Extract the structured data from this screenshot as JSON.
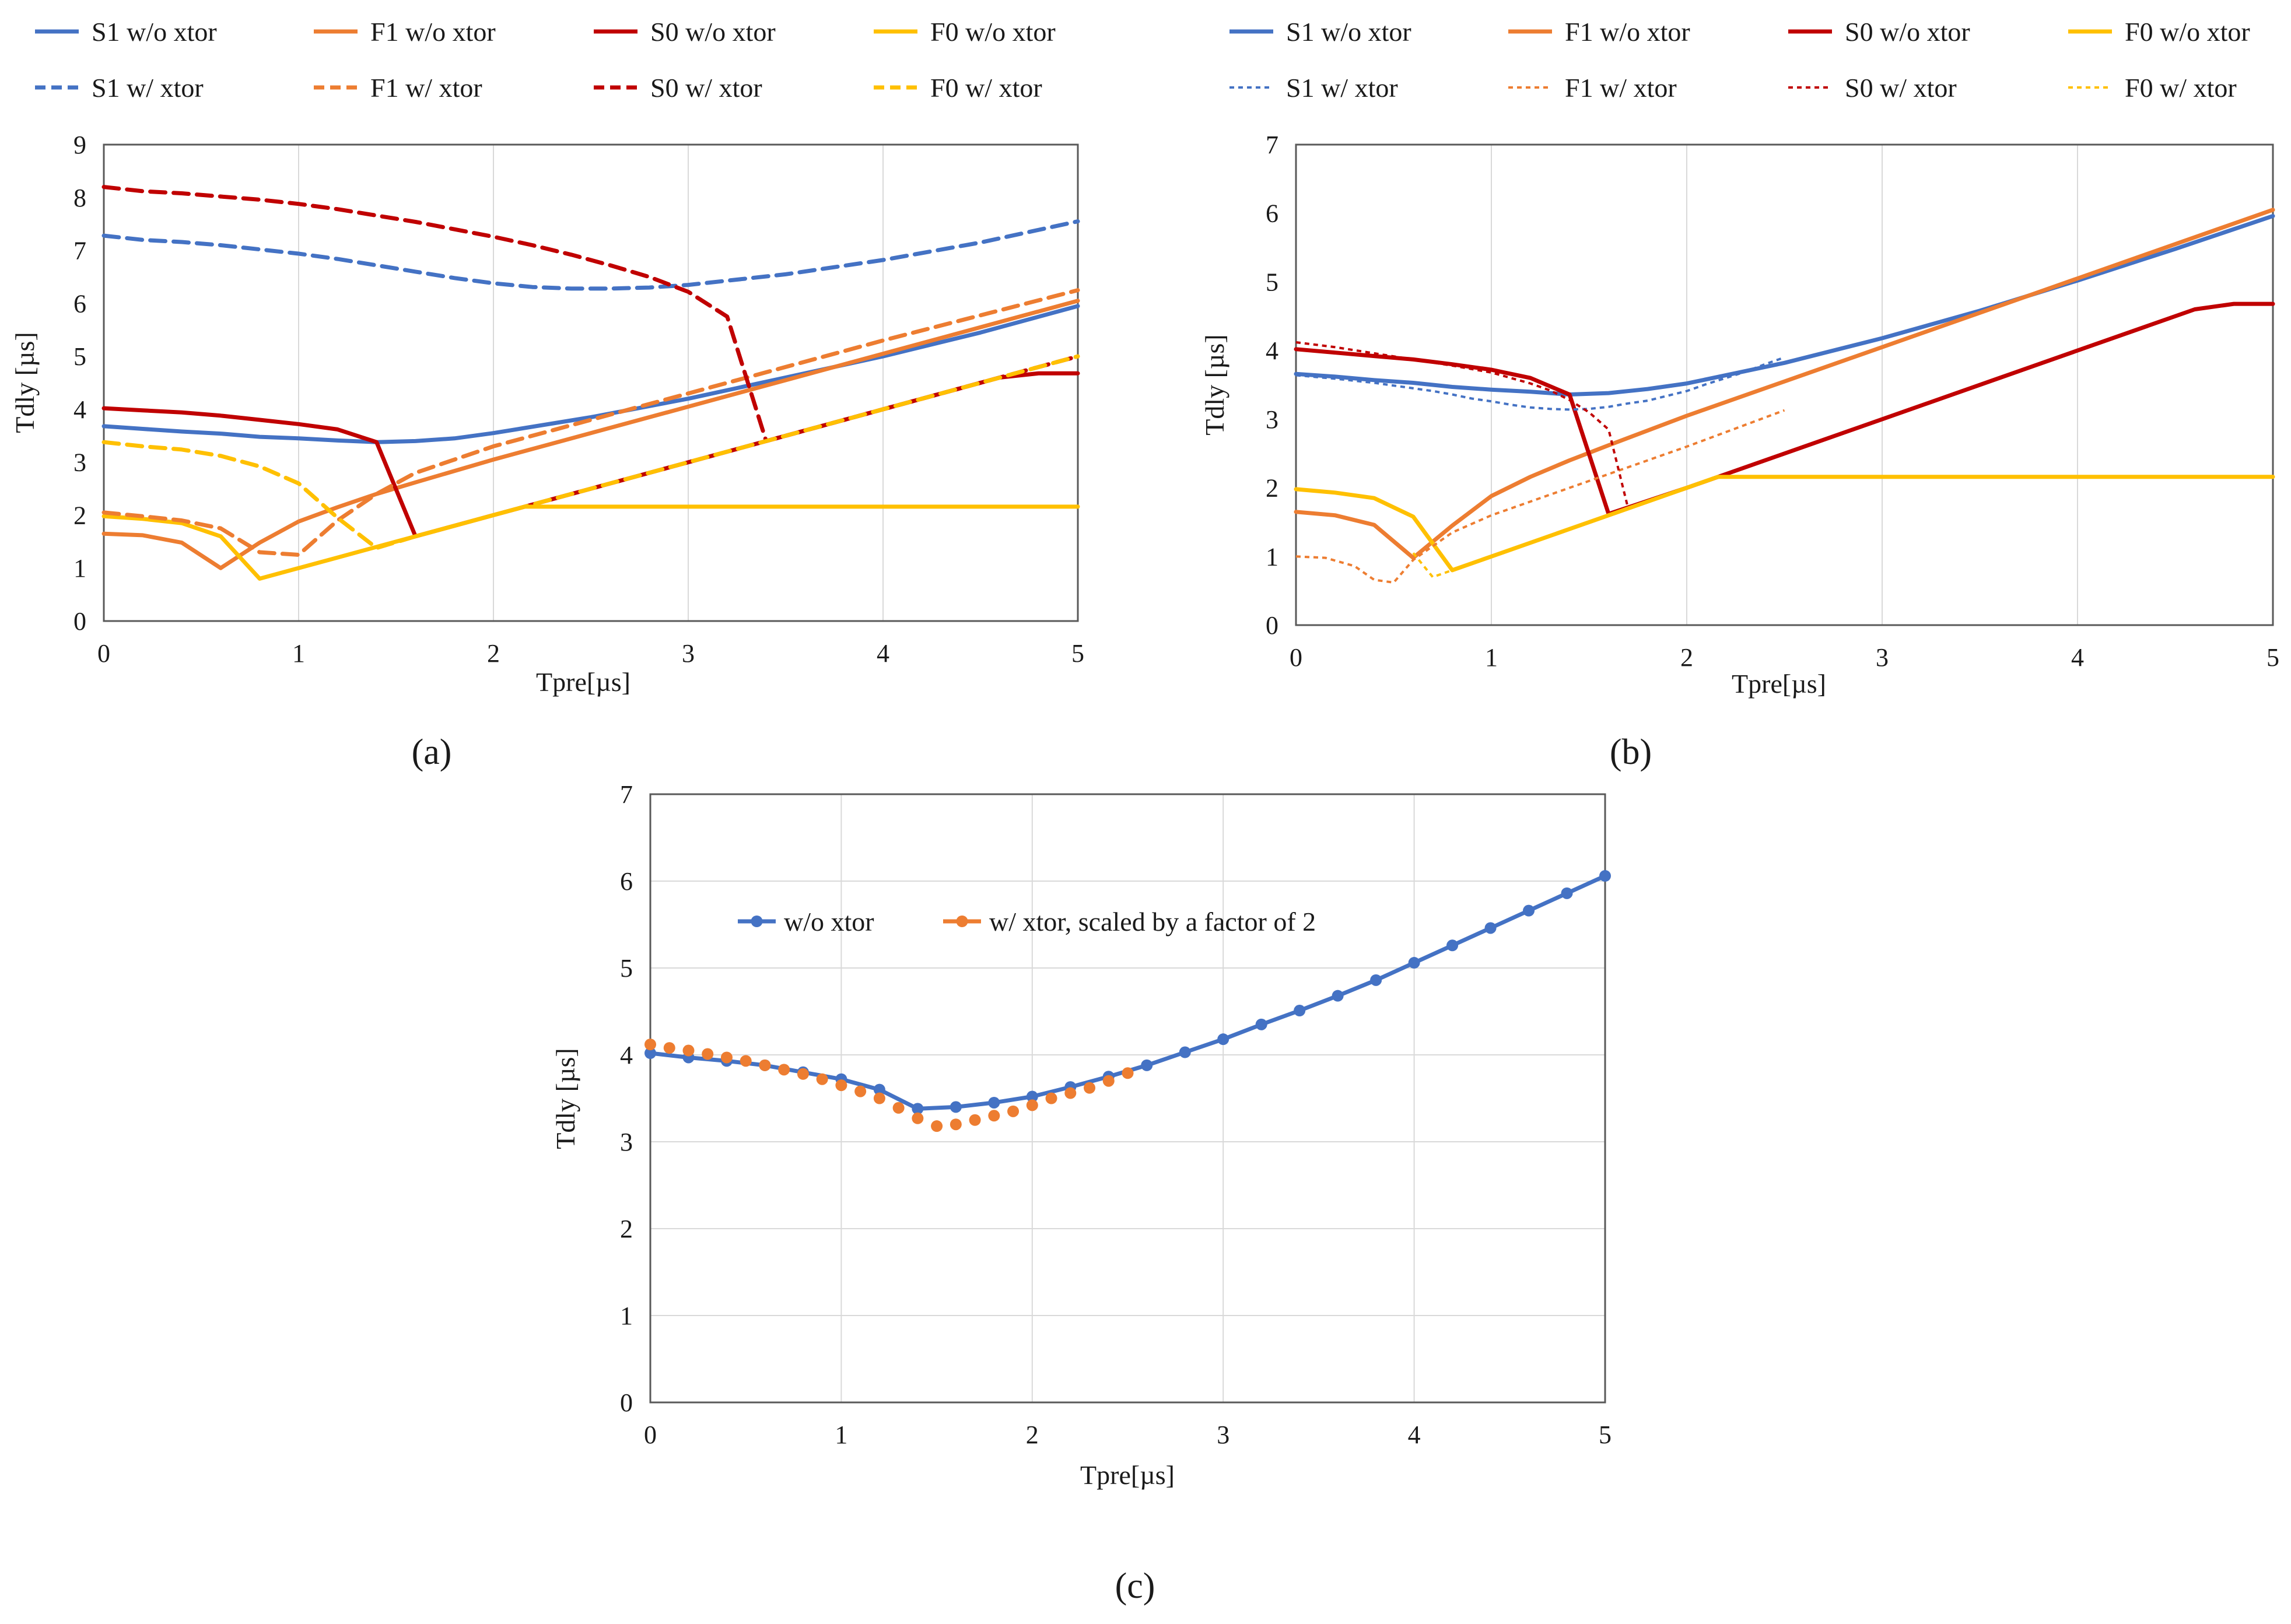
{
  "colors": {
    "S1": "#4472C4",
    "F1": "#ED7D31",
    "S0": "#C00000",
    "F0": "#FFC000",
    "grid": "#d9d9d9",
    "frame": "#595959"
  },
  "chart_data": [
    {
      "panel": "(a)",
      "type": "line",
      "xlabel": "Tpre[µs]",
      "ylabel": "Tdly [µs]",
      "xlim": [
        0,
        5
      ],
      "ylim": [
        0,
        9
      ],
      "xticks": [
        "0",
        "1",
        "2",
        "3",
        "4",
        "5"
      ],
      "yticks": [
        "0",
        "1",
        "2",
        "3",
        "4",
        "5",
        "6",
        "7",
        "8",
        "9"
      ],
      "grid": "vertical",
      "legend": "top",
      "series": [
        {
          "name": "S1 w/o xtor",
          "color": "#4472C4",
          "style": "solid",
          "x": [
            0,
            0.2,
            0.4,
            0.6,
            0.8,
            1.0,
            1.2,
            1.4,
            1.6,
            1.8,
            2.0,
            2.5,
            3.0,
            3.5,
            4.0,
            4.5,
            5.0
          ],
          "y": [
            3.68,
            3.63,
            3.58,
            3.54,
            3.48,
            3.45,
            3.41,
            3.38,
            3.4,
            3.45,
            3.55,
            3.85,
            4.2,
            4.6,
            5.0,
            5.45,
            5.95
          ]
        },
        {
          "name": "F1 w/o xtor",
          "color": "#ED7D31",
          "style": "solid",
          "x": [
            0,
            0.2,
            0.4,
            0.6,
            0.8,
            1.0,
            1.2,
            1.4,
            1.6,
            2.0,
            3.0,
            4.0,
            5.0
          ],
          "y": [
            1.65,
            1.62,
            1.48,
            1.0,
            1.48,
            1.88,
            2.15,
            2.4,
            2.62,
            3.05,
            4.05,
            5.05,
            6.05
          ]
        },
        {
          "name": "S0 w/o xtor",
          "color": "#C00000",
          "style": "solid",
          "x": [
            0,
            0.2,
            0.4,
            0.6,
            0.8,
            1.0,
            1.2,
            1.4,
            1.6,
            2.0,
            3.0,
            4.0,
            4.6,
            4.8,
            5.0
          ],
          "y": [
            4.02,
            3.98,
            3.94,
            3.88,
            3.8,
            3.72,
            3.62,
            3.38,
            1.6,
            2.0,
            3.0,
            4.0,
            4.6,
            4.68,
            4.68
          ]
        },
        {
          "name": "F0 w/o xtor",
          "color": "#FFC000",
          "style": "solid",
          "x": [
            0,
            0.2,
            0.4,
            0.6,
            0.8,
            1.0,
            1.2,
            1.4,
            1.6,
            1.8,
            2.0,
            2.16,
            3.0,
            4.0,
            5.0
          ],
          "y": [
            1.98,
            1.93,
            1.85,
            1.6,
            0.8,
            1.0,
            1.2,
            1.4,
            1.6,
            1.8,
            2.0,
            2.16,
            2.16,
            2.16,
            2.16
          ]
        },
        {
          "name": "S1 w/ xtor",
          "color": "#4472C4",
          "style": "dashed",
          "x": [
            0,
            0.2,
            0.4,
            0.6,
            0.8,
            1.0,
            1.2,
            1.4,
            1.6,
            1.8,
            2.0,
            2.2,
            2.4,
            2.6,
            2.8,
            3.0,
            3.5,
            4.0,
            4.5,
            5.0
          ],
          "y": [
            7.28,
            7.2,
            7.16,
            7.1,
            7.02,
            6.94,
            6.84,
            6.72,
            6.6,
            6.48,
            6.38,
            6.31,
            6.28,
            6.28,
            6.3,
            6.35,
            6.55,
            6.82,
            7.15,
            7.55
          ]
        },
        {
          "name": "F1 w/ xtor",
          "color": "#ED7D31",
          "style": "dashed",
          "x": [
            0,
            0.2,
            0.4,
            0.6,
            0.8,
            1.0,
            1.2,
            1.4,
            1.6,
            2.0,
            3.0,
            4.0,
            5.0
          ],
          "y": [
            2.05,
            1.98,
            1.9,
            1.75,
            1.3,
            1.25,
            1.9,
            2.4,
            2.8,
            3.3,
            4.3,
            5.3,
            6.25
          ]
        },
        {
          "name": "S0 w/ xtor",
          "color": "#C00000",
          "style": "dashed",
          "x": [
            0,
            0.2,
            0.4,
            0.6,
            0.8,
            1.0,
            1.2,
            1.4,
            1.6,
            1.8,
            2.0,
            2.2,
            2.4,
            2.6,
            2.8,
            3.0,
            3.2,
            3.4,
            4.0,
            4.6,
            5.0
          ],
          "y": [
            8.2,
            8.12,
            8.08,
            8.02,
            7.96,
            7.88,
            7.78,
            7.66,
            7.54,
            7.4,
            7.26,
            7.1,
            6.92,
            6.72,
            6.5,
            6.22,
            5.75,
            3.4,
            4.0,
            4.6,
            5.0
          ]
        },
        {
          "name": "F0 w/ xtor",
          "color": "#FFC000",
          "style": "dashed",
          "x": [
            0,
            0.2,
            0.4,
            0.6,
            0.8,
            1.0,
            1.2,
            1.4,
            1.6,
            2.0,
            3.0,
            4.0,
            5.0
          ],
          "y": [
            3.38,
            3.3,
            3.24,
            3.12,
            2.92,
            2.6,
            1.95,
            1.38,
            1.6,
            2.0,
            3.0,
            4.0,
            5.0
          ]
        }
      ]
    },
    {
      "panel": "(b)",
      "type": "line",
      "xlabel": "Tpre[µs]",
      "ylabel": "Tdly [µs]",
      "xlim": [
        0,
        5
      ],
      "ylim": [
        0,
        7
      ],
      "xticks": [
        "0",
        "1",
        "2",
        "3",
        "4",
        "5"
      ],
      "yticks": [
        "0",
        "1",
        "2",
        "3",
        "4",
        "5",
        "6",
        "7"
      ],
      "grid": "vertical",
      "legend": "top",
      "series": [
        {
          "name": "S1 w/o xtor",
          "color": "#4472C4",
          "style": "solid",
          "x": [
            0,
            0.2,
            0.4,
            0.6,
            0.8,
            1.0,
            1.2,
            1.4,
            1.6,
            1.8,
            2.0,
            2.5,
            3.0,
            3.5,
            4.0,
            4.5,
            5.0
          ],
          "y": [
            3.66,
            3.62,
            3.57,
            3.53,
            3.47,
            3.43,
            3.4,
            3.36,
            3.38,
            3.44,
            3.52,
            3.82,
            4.18,
            4.58,
            5.02,
            5.48,
            5.96
          ]
        },
        {
          "name": "F1 w/o xtor",
          "color": "#ED7D31",
          "style": "solid",
          "x": [
            0,
            0.2,
            0.4,
            0.6,
            0.8,
            1.0,
            1.2,
            1.4,
            1.6,
            2.0,
            3.0,
            4.0,
            5.0
          ],
          "y": [
            1.65,
            1.6,
            1.46,
            0.98,
            1.45,
            1.88,
            2.16,
            2.4,
            2.62,
            3.05,
            4.05,
            5.05,
            6.05
          ]
        },
        {
          "name": "S0 w/o xtor",
          "color": "#C00000",
          "style": "solid",
          "x": [
            0,
            0.2,
            0.4,
            0.6,
            0.8,
            1.0,
            1.2,
            1.4,
            1.6,
            2.0,
            3.0,
            4.0,
            4.6,
            4.8,
            5.0
          ],
          "y": [
            4.02,
            3.97,
            3.92,
            3.87,
            3.8,
            3.72,
            3.6,
            3.36,
            1.62,
            2.0,
            3.0,
            4.0,
            4.6,
            4.68,
            4.68
          ]
        },
        {
          "name": "F0 w/o xtor",
          "color": "#FFC000",
          "style": "solid",
          "x": [
            0,
            0.2,
            0.4,
            0.6,
            0.8,
            1.0,
            1.4,
            1.6,
            2.0,
            2.16,
            3.0,
            4.0,
            5.0
          ],
          "y": [
            1.98,
            1.93,
            1.85,
            1.58,
            0.8,
            1.0,
            1.4,
            1.6,
            2.0,
            2.16,
            2.16,
            2.16,
            2.16
          ]
        },
        {
          "name": "S1 w/ xtor",
          "color": "#4472C4",
          "style": "dotted",
          "x": [
            0,
            0.2,
            0.4,
            0.6,
            0.7,
            0.8,
            0.9,
            1.0,
            1.1,
            1.2,
            1.3,
            1.4,
            1.5,
            1.6,
            1.7,
            1.8,
            1.9,
            2.0,
            2.1,
            2.2,
            2.3,
            2.4,
            2.5
          ],
          "y": [
            3.64,
            3.59,
            3.53,
            3.45,
            3.41,
            3.36,
            3.3,
            3.26,
            3.21,
            3.17,
            3.15,
            3.14,
            3.15,
            3.18,
            3.23,
            3.27,
            3.34,
            3.41,
            3.51,
            3.6,
            3.69,
            3.8,
            3.9
          ]
        },
        {
          "name": "F1 w/ xtor",
          "color": "#ED7D31",
          "style": "dotted",
          "x": [
            0,
            0.15,
            0.3,
            0.4,
            0.5,
            0.6,
            0.8,
            1.0,
            1.2,
            1.5,
            2.0,
            2.5
          ],
          "y": [
            1.0,
            0.98,
            0.86,
            0.66,
            0.62,
            0.95,
            1.35,
            1.6,
            1.8,
            2.1,
            2.6,
            3.13
          ]
        },
        {
          "name": "S0 w/ xtor",
          "color": "#C00000",
          "style": "dotted",
          "x": [
            0,
            0.2,
            0.4,
            0.6,
            0.8,
            1.0,
            1.2,
            1.3,
            1.4,
            1.5,
            1.6,
            1.7
          ],
          "y": [
            4.12,
            4.05,
            3.96,
            3.87,
            3.78,
            3.68,
            3.52,
            3.42,
            3.28,
            3.1,
            2.85,
            1.7
          ]
        },
        {
          "name": "F0 w/ xtor",
          "color": "#FFC000",
          "style": "dotted",
          "x": [
            0.6,
            0.7,
            0.8
          ],
          "y": [
            1.05,
            0.7,
            0.8
          ]
        }
      ]
    },
    {
      "panel": "(c)",
      "type": "line",
      "xlabel": "Tpre[µs]",
      "ylabel": "Tdly [µs]",
      "xlim": [
        0,
        5
      ],
      "ylim": [
        0,
        7
      ],
      "xticks": [
        "0",
        "1",
        "2",
        "3",
        "4",
        "5"
      ],
      "yticks": [
        "0",
        "1",
        "2",
        "3",
        "4",
        "5",
        "6",
        "7"
      ],
      "grid": "both",
      "legend": "inside-top-left",
      "series": [
        {
          "name": "w/o xtor",
          "color": "#4472C4",
          "style": "solid-markers",
          "x": [
            0,
            0.2,
            0.4,
            0.6,
            0.8,
            1.0,
            1.2,
            1.4,
            1.6,
            1.8,
            2.0,
            2.2,
            2.4,
            2.6,
            2.8,
            3.0,
            3.2,
            3.4,
            3.6,
            3.8,
            4.0,
            4.2,
            4.4,
            4.6,
            4.8,
            5.0
          ],
          "y": [
            4.02,
            3.97,
            3.93,
            3.88,
            3.8,
            3.72,
            3.6,
            3.38,
            3.4,
            3.45,
            3.52,
            3.63,
            3.75,
            3.88,
            4.03,
            4.18,
            4.35,
            4.51,
            4.68,
            4.86,
            5.06,
            5.26,
            5.46,
            5.66,
            5.86,
            6.06
          ]
        },
        {
          "name": "w/ xtor, scaled by a factor of 2",
          "color": "#ED7D31",
          "style": "markers",
          "x": [
            0,
            0.1,
            0.2,
            0.3,
            0.4,
            0.5,
            0.6,
            0.7,
            0.8,
            0.9,
            1.0,
            1.1,
            1.2,
            1.3,
            1.4,
            1.5,
            1.6,
            1.7,
            1.8,
            1.9,
            2.0,
            2.1,
            2.2,
            2.3,
            2.4,
            2.5
          ],
          "y": [
            4.12,
            4.08,
            4.05,
            4.01,
            3.97,
            3.93,
            3.88,
            3.83,
            3.78,
            3.72,
            3.65,
            3.58,
            3.5,
            3.39,
            3.27,
            3.18,
            3.2,
            3.25,
            3.3,
            3.35,
            3.42,
            3.5,
            3.56,
            3.62,
            3.7,
            3.79
          ]
        }
      ]
    }
  ]
}
